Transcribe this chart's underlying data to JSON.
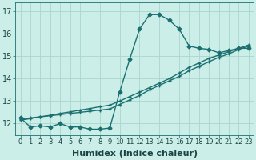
{
  "xlabel": "Humidex (Indice chaleur)",
  "bg_color": "#cceee8",
  "grid_color": "#aad4ce",
  "line_color": "#1a7070",
  "xlim": [
    -0.5,
    23.5
  ],
  "ylim": [
    11.5,
    17.4
  ],
  "yticks": [
    12,
    13,
    14,
    15,
    16,
    17
  ],
  "xticks": [
    0,
    1,
    2,
    3,
    4,
    5,
    6,
    7,
    8,
    9,
    10,
    11,
    12,
    13,
    14,
    15,
    16,
    17,
    18,
    19,
    20,
    21,
    22,
    23
  ],
  "curve1_x": [
    0,
    1,
    2,
    3,
    4,
    5,
    6,
    7,
    8,
    9,
    10,
    11,
    12,
    13,
    14,
    15,
    16,
    17,
    18,
    19,
    20,
    21,
    22,
    23
  ],
  "curve1_y": [
    12.25,
    11.85,
    11.9,
    11.85,
    12.0,
    11.85,
    11.85,
    11.75,
    11.75,
    11.8,
    13.4,
    14.85,
    16.2,
    16.85,
    16.85,
    16.6,
    16.2,
    15.45,
    15.35,
    15.3,
    15.15,
    15.25,
    15.35,
    15.35
  ],
  "curve2_x": [
    0,
    1,
    2,
    3,
    4,
    5,
    6,
    7,
    8,
    9,
    10,
    11,
    12,
    13,
    14,
    15,
    16,
    17,
    18,
    19,
    20,
    21,
    22,
    23
  ],
  "curve2_y": [
    12.2,
    12.25,
    12.3,
    12.35,
    12.4,
    12.45,
    12.5,
    12.55,
    12.6,
    12.65,
    12.85,
    13.05,
    13.25,
    13.5,
    13.7,
    13.9,
    14.1,
    14.35,
    14.55,
    14.75,
    14.95,
    15.1,
    15.3,
    15.45
  ],
  "curve3_x": [
    0,
    1,
    2,
    3,
    4,
    5,
    6,
    7,
    8,
    9,
    10,
    11,
    12,
    13,
    14,
    15,
    16,
    17,
    18,
    19,
    20,
    21,
    22,
    23
  ],
  "curve3_y": [
    12.15,
    12.22,
    12.3,
    12.37,
    12.45,
    12.52,
    12.6,
    12.67,
    12.75,
    12.82,
    13.0,
    13.2,
    13.4,
    13.6,
    13.8,
    14.0,
    14.25,
    14.5,
    14.7,
    14.9,
    15.05,
    15.2,
    15.35,
    15.5
  ],
  "marker_size": 2.5,
  "linewidth": 1.0,
  "xlabel_fontsize": 8,
  "ytick_fontsize": 7,
  "xtick_fontsize": 6
}
